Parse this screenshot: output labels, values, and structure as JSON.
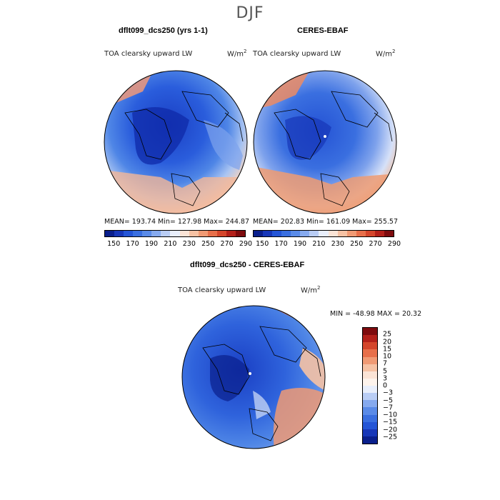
{
  "figure": {
    "title": "DJF",
    "colors": {
      "land_outline": "#000000",
      "background": "#ffffff"
    }
  },
  "panels": [
    {
      "title": "dflt099_dcs250 (yrs 1-1)",
      "variable": "TOA clearsky upward LW",
      "units_base": "W/m",
      "units_exp": "2",
      "stats_text": "MEAN= 193.74   Min= 127.98   Max= 244.87",
      "mean": 193.74,
      "min": 127.98,
      "max": 244.87
    },
    {
      "title": "CERES-EBAF",
      "variable": "TOA clearsky upward LW",
      "units_base": "W/m",
      "units_exp": "2",
      "stats_text": "MEAN= 202.83   Min= 161.09   Max= 255.57",
      "mean": 202.83,
      "min": 161.09,
      "max": 255.57
    },
    {
      "title": "dflt099_dcs250 - CERES-EBAF",
      "variable": "TOA clearsky upward LW",
      "units_base": "W/m",
      "units_exp": "2",
      "stats_text": "MIN = -48.98 MAX =  20.32",
      "min": -48.98,
      "max": 20.32
    }
  ],
  "abs_colorbar": {
    "tick_labels": [
      "150",
      "170",
      "190",
      "210",
      "230",
      "250",
      "270",
      "290"
    ],
    "colors": [
      "#0a1f8c",
      "#1737b8",
      "#2455d6",
      "#3a6fe0",
      "#5a8be8",
      "#86aaef",
      "#b9cdf5",
      "#e8eefb",
      "#fbe4d6",
      "#f6c2a4",
      "#f09a74",
      "#e76f4a",
      "#d4462c",
      "#b3201a",
      "#7e0b0e"
    ]
  },
  "diff_colorbar": {
    "tick_labels": [
      "25",
      "20",
      "15",
      "10",
      "7",
      "5",
      "3",
      "0",
      "−3",
      "−5",
      "−7",
      "−10",
      "−15",
      "−20",
      "−25"
    ],
    "colors": [
      "#7e0b0e",
      "#b3201a",
      "#d4462c",
      "#e76f4a",
      "#f09a74",
      "#f6c2a4",
      "#fbe4d6",
      "#fdf3ec",
      "#e8eefb",
      "#b9cdf5",
      "#86aaef",
      "#5a8be8",
      "#3a6fe0",
      "#2455d6",
      "#1737b8",
      "#0a1f8c"
    ]
  }
}
